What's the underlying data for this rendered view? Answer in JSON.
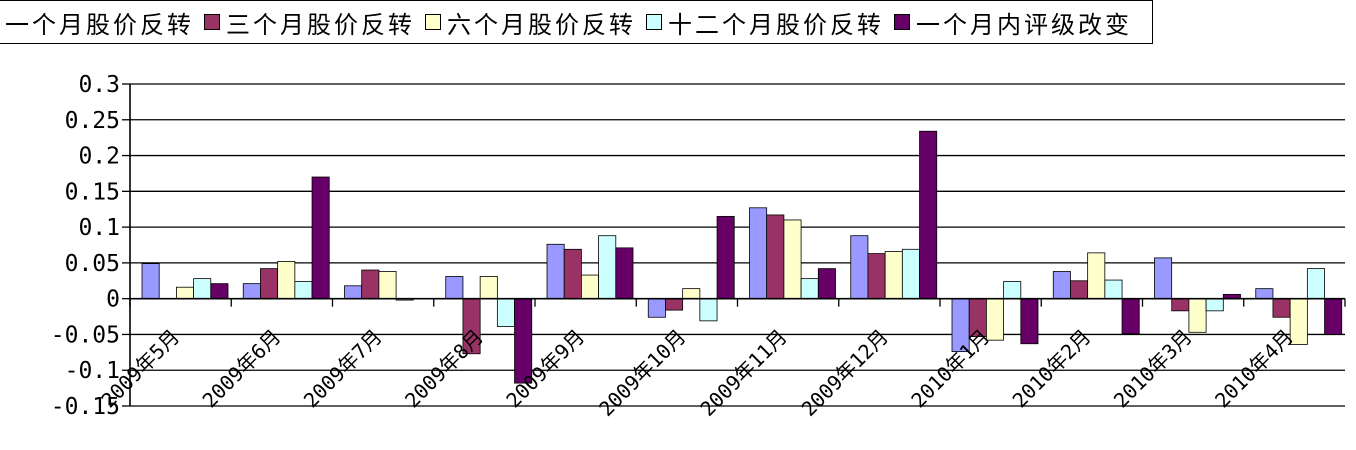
{
  "chart_data": {
    "type": "bar",
    "categories": [
      "2009年5月",
      "2009年6月",
      "2009年7月",
      "2009年8月",
      "2009年9月",
      "2009年10月",
      "2009年11月",
      "2009年12月",
      "2010年1月",
      "2010年2月",
      "2010年3月",
      "2010年4月"
    ],
    "series": [
      {
        "name": "一个月股价反转",
        "color": "#9999FF",
        "values": [
          0.049,
          0.021,
          0.018,
          0.031,
          0.076,
          -0.026,
          0.127,
          0.088,
          -0.074,
          0.038,
          0.057,
          0.014
        ]
      },
      {
        "name": "三个月股价反转",
        "color": "#993366",
        "values": [
          0.0,
          0.042,
          0.04,
          -0.077,
          0.069,
          -0.016,
          0.117,
          0.063,
          -0.053,
          0.025,
          -0.017,
          -0.026
        ]
      },
      {
        "name": "六个月股价反转",
        "color": "#FFFFCC",
        "values": [
          0.016,
          0.052,
          0.038,
          0.031,
          0.033,
          0.014,
          0.11,
          0.066,
          -0.058,
          0.064,
          -0.047,
          -0.064
        ]
      },
      {
        "name": "十二个月股价反转",
        "color": "#CCFFFF",
        "values": [
          0.028,
          0.024,
          -0.002,
          -0.039,
          0.088,
          -0.031,
          0.028,
          0.069,
          0.024,
          0.026,
          -0.017,
          0.042
        ]
      },
      {
        "name": "一个月内评级改变",
        "color": "#660066",
        "values": [
          0.021,
          0.17,
          0.0,
          -0.118,
          0.071,
          0.115,
          0.042,
          0.234,
          -0.063,
          -0.049,
          0.006,
          -0.05
        ]
      }
    ],
    "ylim": [
      -0.15,
      0.3
    ],
    "yticks": [
      "0.3",
      "0.25",
      "0.2",
      "0.15",
      "0.1",
      "0.05",
      "0",
      "-0.05",
      "-0.1",
      "-0.15"
    ],
    "ytick_values": [
      0.3,
      0.25,
      0.2,
      0.15,
      0.1,
      0.05,
      0,
      -0.05,
      -0.1,
      -0.15
    ],
    "grid": true,
    "legend": "top"
  }
}
